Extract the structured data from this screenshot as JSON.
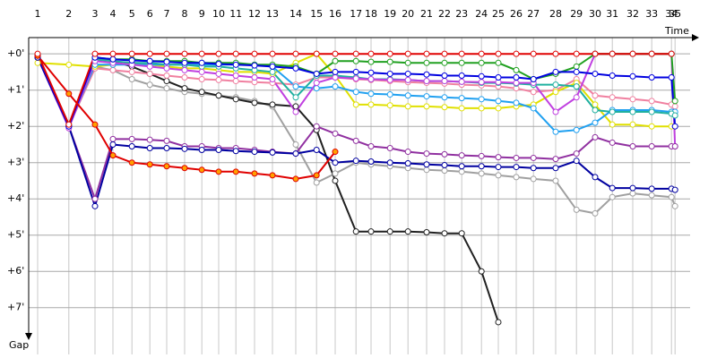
{
  "chart_data": {
    "type": "line",
    "x_label": "Time",
    "y_label": "Gap",
    "x": [
      0.25,
      1.12,
      1.85,
      2.35,
      2.88,
      3.38,
      3.85,
      4.35,
      4.83,
      5.3,
      5.78,
      6.3,
      6.8,
      7.45,
      8.03,
      8.55,
      9.13,
      9.55,
      10.08,
      10.58,
      11.1,
      11.6,
      12.08,
      12.63,
      13.1,
      13.6,
      14.08,
      14.7,
      15.28,
      15.8,
      16.28,
      16.85,
      17.38,
      17.93,
      18.03
    ],
    "xlim": [
      0,
      18.45
    ],
    "xticks": [
      {
        "value": 0.25,
        "label": "1"
      },
      {
        "value": 1.12,
        "label": "2"
      },
      {
        "value": 1.85,
        "label": "3"
      },
      {
        "value": 2.35,
        "label": "4"
      },
      {
        "value": 2.88,
        "label": "5"
      },
      {
        "value": 3.38,
        "label": "6"
      },
      {
        "value": 3.85,
        "label": "7"
      },
      {
        "value": 4.35,
        "label": "8"
      },
      {
        "value": 4.83,
        "label": "9"
      },
      {
        "value": 5.3,
        "label": "10"
      },
      {
        "value": 5.78,
        "label": "11"
      },
      {
        "value": 6.3,
        "label": "12"
      },
      {
        "value": 6.8,
        "label": "13"
      },
      {
        "value": 7.45,
        "label": "14"
      },
      {
        "value": 8.03,
        "label": "15"
      },
      {
        "value": 8.55,
        "label": "16"
      },
      {
        "value": 9.13,
        "label": "17"
      },
      {
        "value": 9.55,
        "label": "18"
      },
      {
        "value": 10.08,
        "label": "19"
      },
      {
        "value": 10.58,
        "label": "20"
      },
      {
        "value": 11.1,
        "label": "21"
      },
      {
        "value": 11.6,
        "label": "22"
      },
      {
        "value": 12.08,
        "label": "23"
      },
      {
        "value": 12.63,
        "label": "24"
      },
      {
        "value": 13.1,
        "label": "25"
      },
      {
        "value": 13.6,
        "label": "26"
      },
      {
        "value": 14.08,
        "label": "27"
      },
      {
        "value": 14.7,
        "label": "28"
      },
      {
        "value": 15.28,
        "label": "29"
      },
      {
        "value": 15.8,
        "label": "30"
      },
      {
        "value": 16.28,
        "label": "31"
      },
      {
        "value": 16.85,
        "label": "32"
      },
      {
        "value": 17.38,
        "label": "33"
      },
      {
        "value": 17.93,
        "label": "34"
      },
      {
        "value": 18.03,
        "label": "35"
      }
    ],
    "ylim": [
      -0.35,
      8.29
    ],
    "yticks": [
      {
        "value": 0,
        "label": "+0'"
      },
      {
        "value": 1,
        "label": "+1'"
      },
      {
        "value": 2,
        "label": "+2'"
      },
      {
        "value": 3,
        "label": "+3'"
      },
      {
        "value": 4,
        "label": "+4'"
      },
      {
        "value": 5,
        "label": "+5'"
      },
      {
        "value": 6,
        "label": "+6'"
      },
      {
        "value": 7,
        "label": "+7'"
      }
    ],
    "y_inverted": true,
    "grid": true,
    "series": [
      {
        "color": "#a0a0a0",
        "values": [
          0.1,
          2.0,
          0.35,
          0.45,
          0.7,
          0.85,
          0.95,
          1.05,
          1.1,
          1.15,
          1.2,
          1.3,
          1.45,
          2.5,
          3.55,
          3.3,
          3.0,
          3.05,
          3.1,
          3.15,
          3.2,
          3.22,
          3.25,
          3.3,
          3.35,
          3.4,
          3.45,
          3.5,
          4.3,
          4.4,
          3.95,
          3.85,
          3.9,
          3.95,
          4.2
        ]
      },
      {
        "color": "#202020",
        "values": [
          0.05,
          2.0,
          0.15,
          0.2,
          0.35,
          0.55,
          0.75,
          0.95,
          1.05,
          1.15,
          1.25,
          1.35,
          1.4,
          1.45,
          2.1,
          3.5,
          4.9,
          4.9,
          4.9,
          4.9,
          4.92,
          4.95,
          4.95,
          6.0,
          7.4,
          null,
          null,
          null,
          null,
          null,
          null,
          null,
          null,
          null,
          null
        ]
      },
      {
        "color": "#f080a0",
        "values": [
          0.05,
          2.0,
          0.4,
          0.45,
          0.5,
          0.55,
          0.6,
          0.65,
          0.7,
          0.72,
          0.75,
          0.78,
          0.8,
          0.85,
          0.65,
          0.65,
          0.7,
          0.72,
          0.75,
          0.78,
          0.8,
          0.82,
          0.85,
          0.87,
          0.9,
          0.95,
          1.05,
          1.0,
          0.7,
          1.15,
          1.2,
          1.25,
          1.3,
          1.4,
          1.45
        ]
      },
      {
        "color": "#e0e000",
        "values": [
          0.25,
          0.3,
          0.35,
          0.3,
          0.25,
          0.3,
          0.35,
          0.4,
          0.4,
          0.45,
          0.5,
          0.5,
          0.55,
          0.25,
          0.0,
          0.6,
          1.4,
          1.4,
          1.42,
          1.45,
          1.45,
          1.47,
          1.5,
          1.5,
          1.5,
          1.45,
          1.4,
          1.05,
          0.8,
          1.4,
          1.95,
          1.95,
          2.0,
          2.0,
          2.0
        ]
      },
      {
        "color": "#20a0f0",
        "values": [
          0.05,
          2.0,
          0.3,
          0.3,
          0.3,
          0.3,
          0.3,
          0.3,
          0.3,
          0.3,
          0.3,
          0.3,
          0.35,
          0.9,
          0.95,
          0.9,
          1.05,
          1.1,
          1.12,
          1.15,
          1.17,
          1.2,
          1.22,
          1.25,
          1.3,
          1.35,
          1.5,
          2.15,
          2.1,
          1.9,
          1.55,
          1.55,
          1.55,
          1.6,
          1.6
        ]
      },
      {
        "color": "#20b0a0",
        "values": [
          0.1,
          2.0,
          0.15,
          0.2,
          0.25,
          0.25,
          0.3,
          0.3,
          0.35,
          0.35,
          0.4,
          0.45,
          0.5,
          1.2,
          0.6,
          0.6,
          0.65,
          0.7,
          0.7,
          0.72,
          0.75,
          0.75,
          0.77,
          0.8,
          0.8,
          0.82,
          0.85,
          0.85,
          0.9,
          1.55,
          1.6,
          1.6,
          1.6,
          1.65,
          1.7
        ]
      },
      {
        "color": "#c040e0",
        "values": [
          0.1,
          2.05,
          0.2,
          0.25,
          0.3,
          0.35,
          0.4,
          0.45,
          0.5,
          0.55,
          0.6,
          0.65,
          0.7,
          1.6,
          0.8,
          0.65,
          0.68,
          0.7,
          0.72,
          0.72,
          0.75,
          0.75,
          0.77,
          0.78,
          0.78,
          0.8,
          0.8,
          1.6,
          1.2,
          0,
          0,
          0,
          0,
          0,
          2.55
        ]
      },
      {
        "color": "#9030a0",
        "values": [
          0.1,
          2.0,
          4.0,
          2.35,
          2.35,
          2.37,
          2.4,
          2.55,
          2.55,
          2.6,
          2.6,
          2.65,
          2.7,
          2.75,
          2.0,
          2.2,
          2.4,
          2.55,
          2.6,
          2.7,
          2.75,
          2.77,
          2.8,
          2.82,
          2.85,
          2.87,
          2.87,
          2.9,
          2.75,
          2.3,
          2.45,
          2.55,
          2.55,
          2.55,
          2.55
        ]
      },
      {
        "color": "#0000a0",
        "values": [
          0.1,
          2.0,
          4.2,
          2.5,
          2.55,
          2.6,
          2.6,
          2.62,
          2.65,
          2.65,
          2.68,
          2.7,
          2.72,
          2.75,
          2.65,
          3.0,
          2.95,
          2.97,
          3.0,
          3.02,
          3.05,
          3.07,
          3.1,
          3.1,
          3.12,
          3.12,
          3.15,
          3.15,
          2.95,
          3.4,
          3.7,
          3.7,
          3.72,
          3.72,
          3.75
        ]
      },
      {
        "color": "#20a020",
        "values": [
          0.05,
          1.95,
          0.1,
          0.15,
          0.15,
          0.2,
          0.2,
          0.2,
          0.25,
          0.25,
          0.25,
          0.3,
          0.3,
          0.35,
          0.55,
          0.2,
          0.2,
          0.22,
          0.22,
          0.25,
          0.25,
          0.25,
          0.25,
          0.25,
          0.25,
          0.45,
          0.7,
          0.55,
          0.35,
          0.0,
          0.0,
          0.0,
          0.0,
          0.0,
          1.3
        ]
      },
      {
        "color": "#0000e0",
        "values": [
          0.05,
          2.0,
          0.1,
          0.15,
          0.18,
          0.2,
          0.22,
          0.25,
          0.25,
          0.28,
          0.3,
          0.32,
          0.35,
          0.4,
          0.55,
          0.5,
          0.5,
          0.52,
          0.55,
          0.55,
          0.57,
          0.6,
          0.6,
          0.62,
          0.65,
          0.65,
          0.7,
          0.5,
          0.5,
          0.55,
          0.6,
          0.62,
          0.65,
          0.65,
          2.0
        ]
      },
      {
        "color": "#e00000",
        "marker_color": "#ffa000",
        "values": [
          0.05,
          1.1,
          1.95,
          2.8,
          3.0,
          3.05,
          3.1,
          3.15,
          3.2,
          3.25,
          3.25,
          3.3,
          3.35,
          3.45,
          3.35,
          2.7,
          null,
          null,
          null,
          null,
          null,
          null,
          null,
          null,
          null,
          null,
          null,
          null,
          null,
          null,
          null,
          null,
          null,
          null,
          null
        ]
      },
      {
        "color": "#e00000",
        "values": [
          0,
          1.95,
          0,
          0,
          0,
          0,
          0,
          0,
          0,
          0,
          0,
          0,
          0,
          0,
          0,
          0,
          0,
          0,
          0,
          0,
          0,
          0,
          0,
          0,
          0,
          0,
          0,
          0,
          0,
          0,
          0,
          0,
          0,
          0,
          null
        ]
      }
    ]
  }
}
